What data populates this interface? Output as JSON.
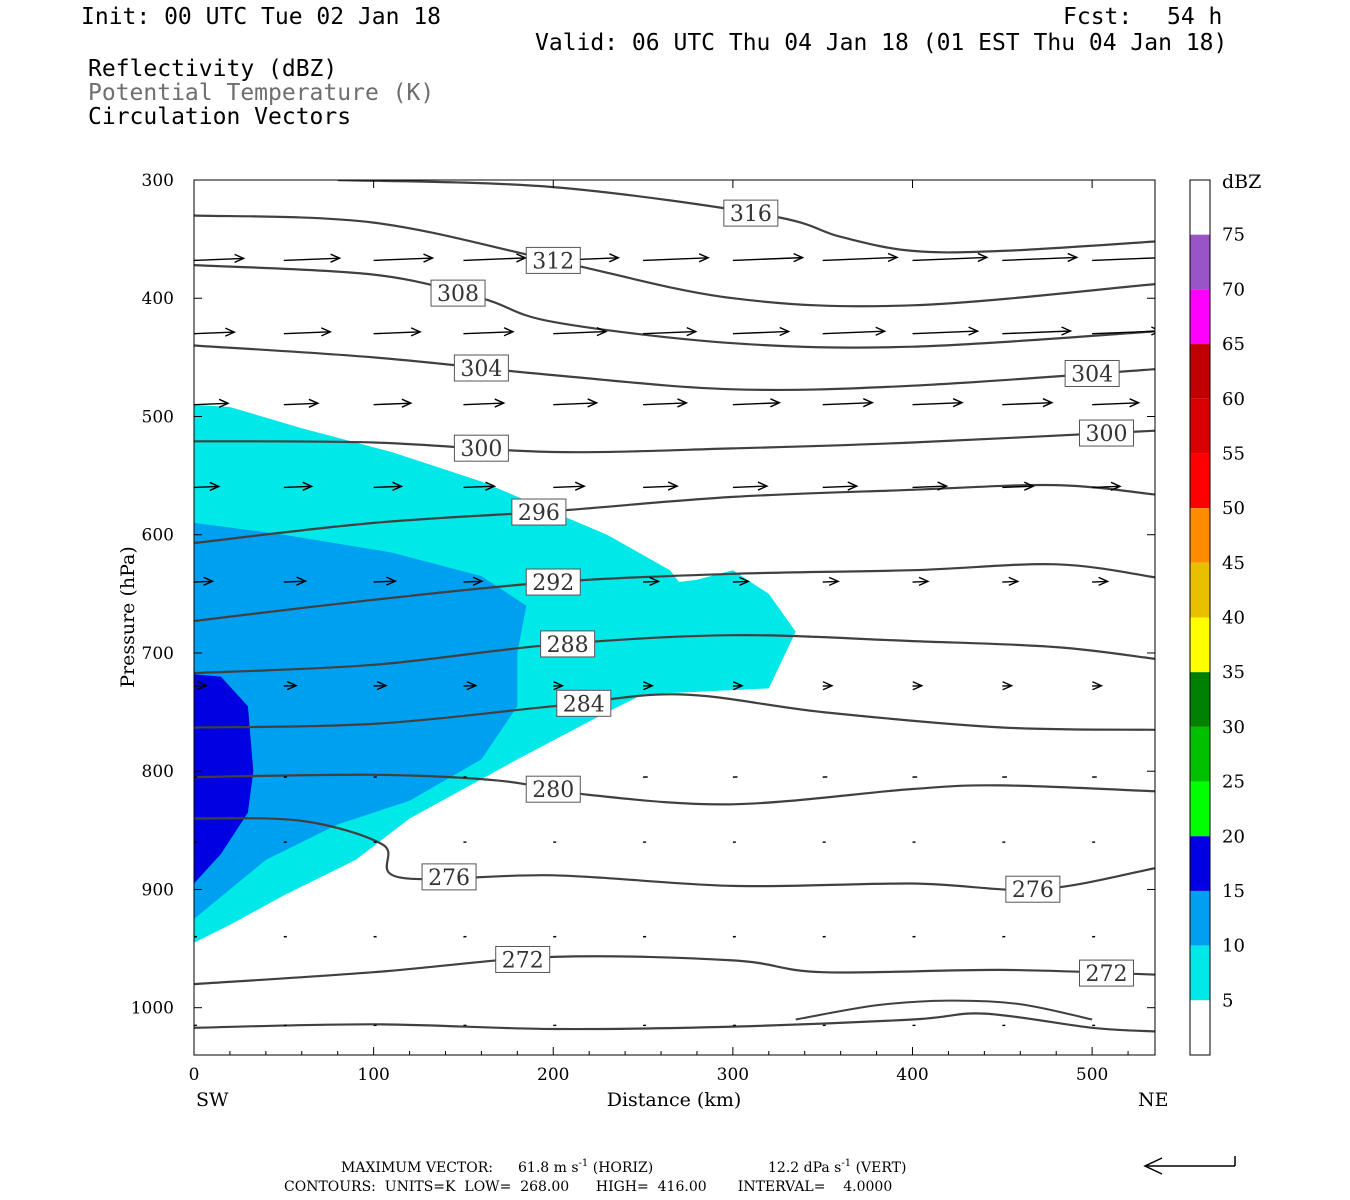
{
  "header": {
    "init": "Init: 00 UTC Tue 02 Jan 18",
    "fcst_label": "Fcst:",
    "fcst_value": "54 h",
    "valid": "Valid: 06 UTC Thu 04 Jan 18 (01 EST Thu 04 Jan 18)",
    "field1": "Reflectivity (dBZ)",
    "field2": "Potential Temperature (K)",
    "field3": "Circulation Vectors"
  },
  "footer": {
    "max_vector_label": "MAXIMUM VECTOR:",
    "max_horiz": "61.8 m s",
    "horiz_tag": "(HORIZ)",
    "max_vert": "12.2 dPa s",
    "vert_tag": "(VERT)",
    "exp": "-1",
    "contours": "CONTOURS:  UNITS=K  LOW=  268.00      HIGH=  416.00       INTERVAL=    4.0000"
  },
  "colors": {
    "contour": "#404040",
    "vector": "#000000",
    "refl5": "#00e8e8",
    "refl10": "#00a0f0",
    "refl15": "#0000e0"
  },
  "colorbar": {
    "title": "dBZ",
    "levels": [
      "5",
      "10",
      "15",
      "20",
      "25",
      "30",
      "35",
      "40",
      "45",
      "50",
      "55",
      "60",
      "65",
      "70",
      "75"
    ],
    "colors": [
      "#ffffff",
      "#00e8e8",
      "#00a0f0",
      "#0000e0",
      "#00ff00",
      "#00c000",
      "#008000",
      "#ffff00",
      "#e8c000",
      "#ff8c00",
      "#ff0000",
      "#d80000",
      "#c00000",
      "#ff00ff",
      "#9955c8",
      "#ffffff"
    ]
  },
  "chart_data": {
    "type": "contour",
    "xlabel": "Distance (km)",
    "ylabel": "Pressure (hPa)",
    "x_left_label": "SW",
    "x_right_label": "NE",
    "xlim": [
      0,
      535
    ],
    "ylim": [
      300,
      1040
    ],
    "x_ticks": [
      0,
      100,
      200,
      300,
      400,
      500
    ],
    "y_ticks": [
      300,
      400,
      500,
      600,
      700,
      800,
      900,
      1000
    ],
    "reflectivity": [
      {
        "level": 5,
        "polygon": [
          [
            0,
            490
          ],
          [
            20,
            492
          ],
          [
            60,
            510
          ],
          [
            110,
            530
          ],
          [
            160,
            555
          ],
          [
            230,
            600
          ],
          [
            265,
            630
          ],
          [
            270,
            640
          ],
          [
            280,
            638
          ],
          [
            300,
            630
          ],
          [
            320,
            650
          ],
          [
            335,
            682
          ],
          [
            320,
            730
          ],
          [
            250,
            735
          ],
          [
            230,
            750
          ],
          [
            180,
            790
          ],
          [
            120,
            840
          ],
          [
            90,
            875
          ],
          [
            50,
            905
          ],
          [
            20,
            930
          ],
          [
            0,
            945
          ]
        ]
      },
      {
        "level": 10,
        "polygon": [
          [
            0,
            590
          ],
          [
            50,
            600
          ],
          [
            110,
            615
          ],
          [
            160,
            635
          ],
          [
            185,
            660
          ],
          [
            180,
            700
          ],
          [
            180,
            745
          ],
          [
            160,
            790
          ],
          [
            120,
            825
          ],
          [
            80,
            845
          ],
          [
            40,
            875
          ],
          [
            0,
            925
          ]
        ]
      },
      {
        "level": 15,
        "polygon": [
          [
            0,
            718
          ],
          [
            15,
            720
          ],
          [
            30,
            745
          ],
          [
            33,
            800
          ],
          [
            30,
            835
          ],
          [
            15,
            870
          ],
          [
            0,
            895
          ]
        ]
      }
    ],
    "theta_contours": [
      {
        "level": 316,
        "label_x": 310,
        "points": [
          [
            80,
            300
          ],
          [
            200,
            306
          ],
          [
            320,
            330
          ],
          [
            360,
            348
          ],
          [
            400,
            360
          ],
          [
            450,
            360
          ],
          [
            535,
            352
          ]
        ]
      },
      {
        "level": 312,
        "label_x": 200,
        "points": [
          [
            0,
            330
          ],
          [
            100,
            336
          ],
          [
            200,
            368
          ],
          [
            300,
            400
          ],
          [
            400,
            406
          ],
          [
            535,
            388
          ]
        ]
      },
      {
        "level": 308,
        "label_x": 147,
        "points": [
          [
            0,
            372
          ],
          [
            100,
            380
          ],
          [
            160,
            400
          ],
          [
            200,
            420
          ],
          [
            300,
            438
          ],
          [
            400,
            441
          ],
          [
            535,
            428
          ]
        ]
      },
      {
        "level": 304,
        "label_x": 160,
        "labels_x": [
          160,
          500
        ],
        "points": [
          [
            0,
            440
          ],
          [
            100,
            450
          ],
          [
            200,
            465
          ],
          [
            300,
            477
          ],
          [
            400,
            474
          ],
          [
            535,
            460
          ]
        ]
      },
      {
        "level": 300,
        "label_x": 160,
        "labels_x": [
          160,
          508
        ],
        "points": [
          [
            0,
            521
          ],
          [
            100,
            522
          ],
          [
            200,
            530
          ],
          [
            300,
            527
          ],
          [
            400,
            522
          ],
          [
            535,
            512
          ]
        ]
      },
      {
        "level": 296,
        "label_x": 192,
        "points": [
          [
            0,
            607
          ],
          [
            100,
            590
          ],
          [
            200,
            580
          ],
          [
            300,
            568
          ],
          [
            400,
            562
          ],
          [
            480,
            558
          ],
          [
            535,
            566
          ]
        ]
      },
      {
        "level": 292,
        "label_x": 200,
        "points": [
          [
            0,
            673
          ],
          [
            100,
            655
          ],
          [
            200,
            640
          ],
          [
            300,
            633
          ],
          [
            400,
            630
          ],
          [
            480,
            625
          ],
          [
            535,
            636
          ]
        ]
      },
      {
        "level": 288,
        "label_x": 208,
        "points": [
          [
            0,
            717
          ],
          [
            100,
            710
          ],
          [
            200,
            693
          ],
          [
            300,
            685
          ],
          [
            400,
            690
          ],
          [
            480,
            695
          ],
          [
            535,
            705
          ]
        ]
      },
      {
        "level": 284,
        "label_x": 217,
        "points": [
          [
            0,
            763
          ],
          [
            100,
            760
          ],
          [
            200,
            745
          ],
          [
            270,
            735
          ],
          [
            350,
            750
          ],
          [
            450,
            763
          ],
          [
            535,
            765
          ]
        ]
      },
      {
        "level": 280,
        "label_x": 200,
        "points": [
          [
            0,
            805
          ],
          [
            100,
            803
          ],
          [
            170,
            808
          ],
          [
            220,
            820
          ],
          [
            300,
            828
          ],
          [
            400,
            815
          ],
          [
            450,
            812
          ],
          [
            535,
            817
          ]
        ]
      },
      {
        "level": 276,
        "label_x": 142,
        "labels_x": [
          142,
          467
        ],
        "points": [
          [
            0,
            840
          ],
          [
            60,
            842
          ],
          [
            105,
            862
          ],
          [
            115,
            890
          ],
          [
            200,
            888
          ],
          [
            300,
            897
          ],
          [
            400,
            895
          ],
          [
            470,
            900
          ],
          [
            535,
            882
          ]
        ]
      },
      {
        "level": 272,
        "label_x": 183,
        "labels_x": [
          183,
          508
        ],
        "points": [
          [
            0,
            980
          ],
          [
            100,
            970
          ],
          [
            200,
            957
          ],
          [
            300,
            960
          ],
          [
            350,
            970
          ],
          [
            450,
            968
          ],
          [
            535,
            972
          ]
        ]
      },
      {
        "level": 268,
        "points": [
          [
            0,
            1017
          ],
          [
            100,
            1014
          ],
          [
            200,
            1018
          ],
          [
            300,
            1016
          ],
          [
            400,
            1010
          ],
          [
            440,
            1005
          ],
          [
            500,
            1017
          ],
          [
            535,
            1020
          ]
        ]
      }
    ],
    "surface_contour": [
      [
        335,
        1010
      ],
      [
        380,
        998
      ],
      [
        420,
        994
      ],
      [
        460,
        997
      ],
      [
        500,
        1010
      ]
    ],
    "vector_rows": [
      {
        "p": 368,
        "u": [
          32,
          36,
          38,
          40,
          42,
          42,
          45,
          48,
          48,
          48,
          48
        ]
      },
      {
        "p": 430,
        "u": [
          26,
          30,
          30,
          32,
          34,
          34,
          36,
          40,
          42,
          44,
          44
        ]
      },
      {
        "p": 490,
        "u": [
          22,
          22,
          24,
          26,
          28,
          28,
          30,
          32,
          32,
          32,
          30
        ]
      },
      {
        "p": 560,
        "u": [
          16,
          18,
          18,
          20,
          20,
          22,
          22,
          22,
          22,
          20,
          18
        ]
      },
      {
        "p": 640,
        "u": [
          12,
          14,
          14,
          12,
          10,
          10,
          10,
          10,
          10,
          10,
          10
        ]
      },
      {
        "p": 728,
        "u": [
          8,
          8,
          8,
          8,
          6,
          6,
          6,
          6,
          6,
          6,
          6
        ]
      },
      {
        "p": 805,
        "u": [
          2,
          2,
          2,
          2,
          3,
          3,
          3,
          3,
          3,
          3,
          3
        ]
      },
      {
        "p": 860,
        "u": [
          1,
          1,
          1,
          1,
          1,
          1,
          1,
          1,
          1,
          1,
          1
        ]
      },
      {
        "p": 940,
        "u": [
          1,
          1,
          1,
          1,
          1,
          1,
          1,
          1,
          1,
          1,
          1
        ]
      },
      {
        "p": 1015,
        "u": [
          1,
          1,
          1,
          1,
          1,
          1,
          1,
          1,
          1,
          1,
          1
        ]
      }
    ],
    "vector_x": [
      0,
      50,
      100,
      150,
      200,
      250,
      300,
      350,
      400,
      450,
      500
    ]
  }
}
